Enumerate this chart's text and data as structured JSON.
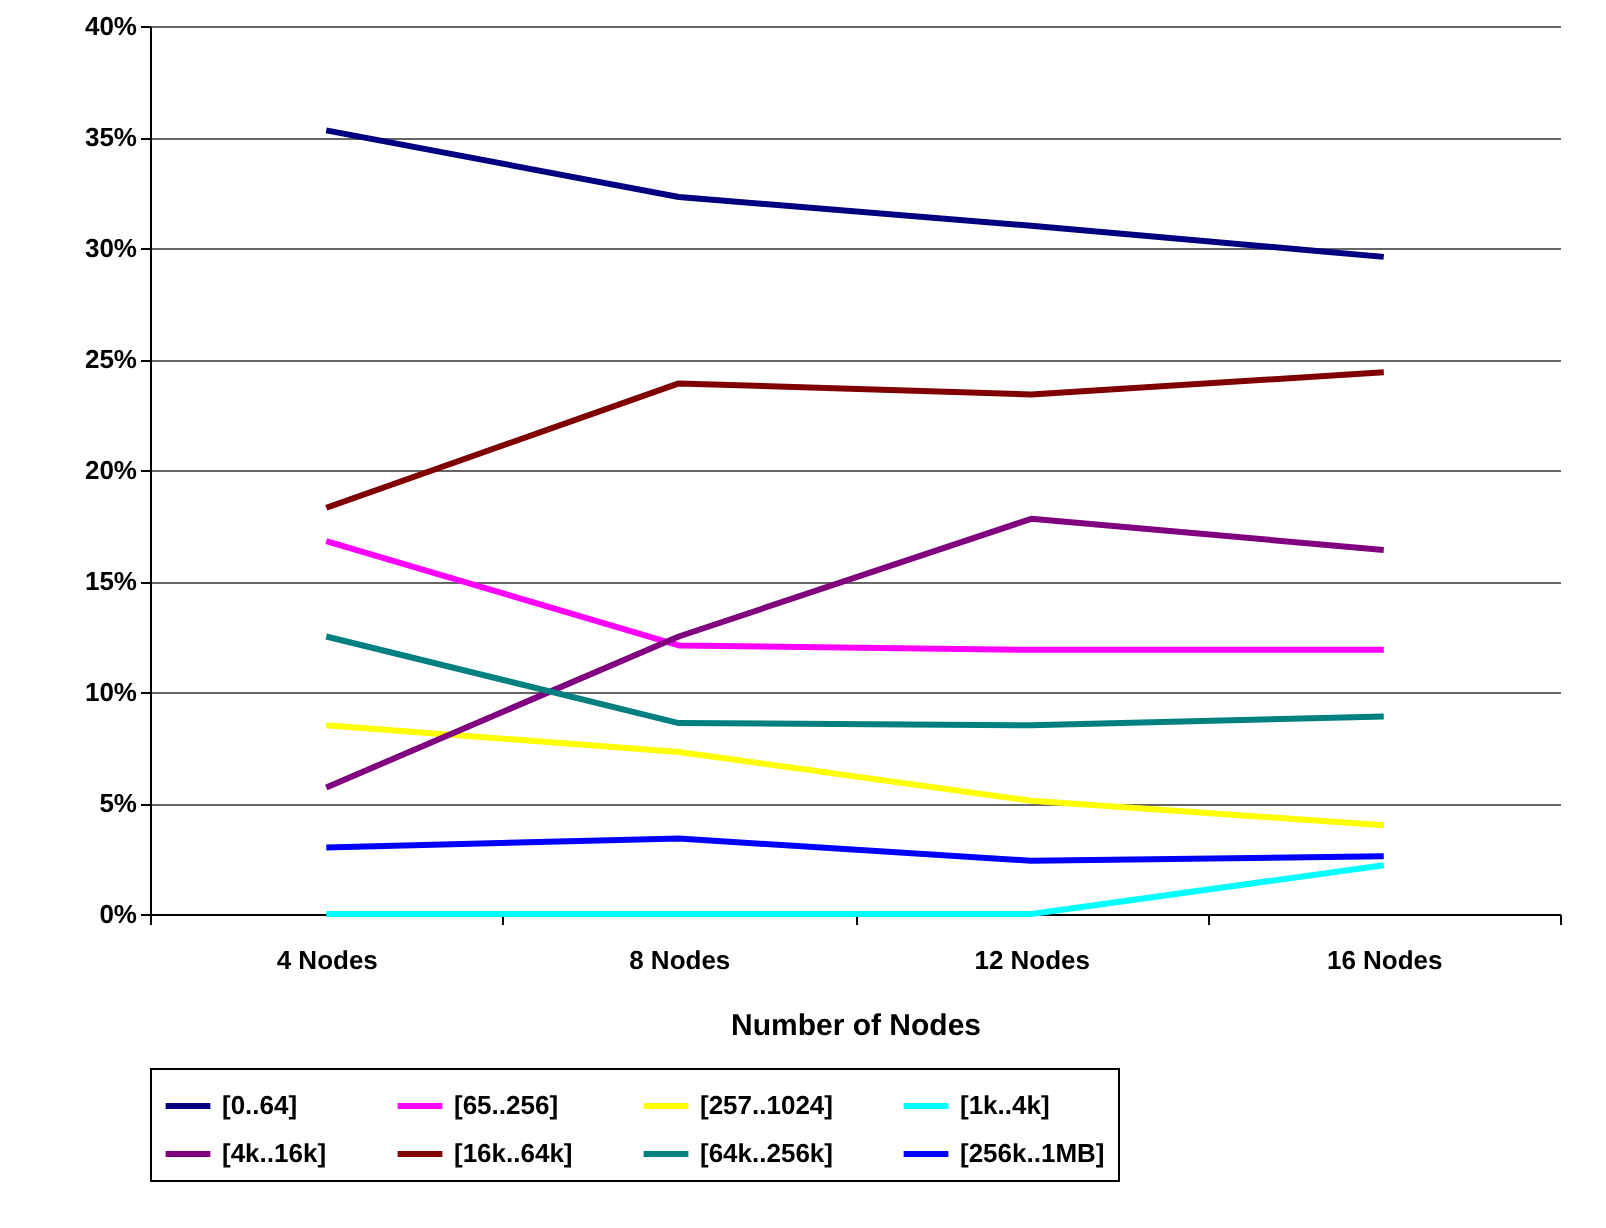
{
  "chart_data": {
    "type": "line",
    "xlabel": "Number of Nodes",
    "categories": [
      "4 Nodes",
      "8 Nodes",
      "12 Nodes",
      "16 Nodes"
    ],
    "ylim": [
      0,
      40
    ],
    "yticks": [
      {
        "value": 0,
        "label": "0%"
      },
      {
        "value": 5,
        "label": "5%"
      },
      {
        "value": 10,
        "label": "10%"
      },
      {
        "value": 15,
        "label": "15%"
      },
      {
        "value": 20,
        "label": "20%"
      },
      {
        "value": 25,
        "label": "25%"
      },
      {
        "value": 30,
        "label": "30%"
      },
      {
        "value": 35,
        "label": "35%"
      },
      {
        "value": 40,
        "label": "40%"
      }
    ],
    "grid": "y",
    "legend": "bottom",
    "marker": "none",
    "line_style": "solid",
    "series": [
      {
        "name": "[0..64]",
        "color": "#000080",
        "values": [
          35.3,
          32.3,
          31.0,
          29.6
        ]
      },
      {
        "name": "[65..256]",
        "color": "#ff00ff",
        "values": [
          16.8,
          12.1,
          11.9,
          11.9
        ]
      },
      {
        "name": "[257..1024]",
        "color": "#ffff00",
        "values": [
          8.5,
          7.3,
          5.1,
          4.0
        ]
      },
      {
        "name": "[1k..4k]",
        "color": "#00ffff",
        "values": [
          0,
          0,
          0,
          2.2
        ]
      },
      {
        "name": "[4k..16k]",
        "color": "#800080",
        "values": [
          5.7,
          12.5,
          17.8,
          16.4
        ]
      },
      {
        "name": "[16k..64k]",
        "color": "#800000",
        "values": [
          18.3,
          23.9,
          23.4,
          24.4
        ]
      },
      {
        "name": "[64k..256k]",
        "color": "#008080",
        "values": [
          12.5,
          8.6,
          8.5,
          8.9
        ]
      },
      {
        "name": "[256k..1MB]",
        "color": "#0000ff",
        "values": [
          3.0,
          3.4,
          2.4,
          2.6
        ]
      }
    ]
  }
}
